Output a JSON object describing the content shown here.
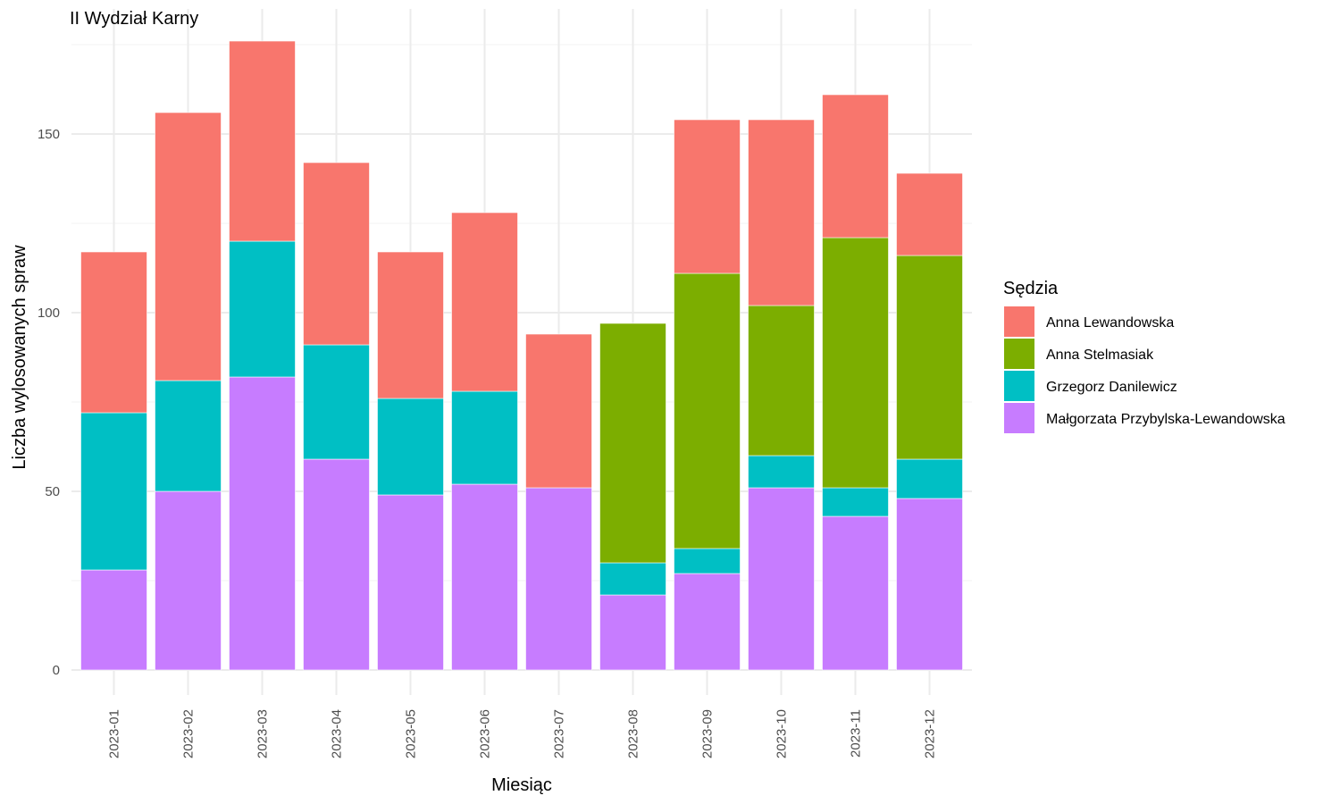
{
  "chart_data": {
    "type": "bar",
    "stacked": true,
    "title": "II Wydział Karny",
    "xlabel": "Miesiąc",
    "ylabel": "Liczba wylosowanych spraw",
    "ylim": [
      0,
      176
    ],
    "yticks": [
      0,
      50,
      100,
      150
    ],
    "grid": true,
    "legend_title": "Sędzia",
    "legend_position": "right",
    "categories": [
      "2023-01",
      "2023-02",
      "2023-03",
      "2023-04",
      "2023-05",
      "2023-06",
      "2023-07",
      "2023-08",
      "2023-09",
      "2023-10",
      "2023-11",
      "2023-12"
    ],
    "series": [
      {
        "name": "Małgorzata Przybylska-Lewandowska",
        "color": "#C77CFF",
        "values": [
          28,
          50,
          82,
          59,
          49,
          52,
          51,
          21,
          27,
          51,
          43,
          48
        ]
      },
      {
        "name": "Grzegorz Danilewicz",
        "color": "#00BFC4",
        "values": [
          44,
          31,
          38,
          32,
          27,
          26,
          0,
          9,
          7,
          9,
          8,
          11
        ]
      },
      {
        "name": "Anna Stelmasiak",
        "color": "#7CAE00",
        "values": [
          0,
          0,
          0,
          0,
          0,
          0,
          0,
          67,
          77,
          42,
          70,
          57
        ]
      },
      {
        "name": "Anna Lewandowska",
        "color": "#F8766D",
        "values": [
          45,
          75,
          56,
          51,
          41,
          50,
          43,
          0,
          43,
          52,
          40,
          23
        ]
      }
    ],
    "legend_order": [
      "Anna Lewandowska",
      "Anna Stelmasiak",
      "Grzegorz Danilewicz",
      "Małgorzata Przybylska-Lewandowska"
    ]
  }
}
